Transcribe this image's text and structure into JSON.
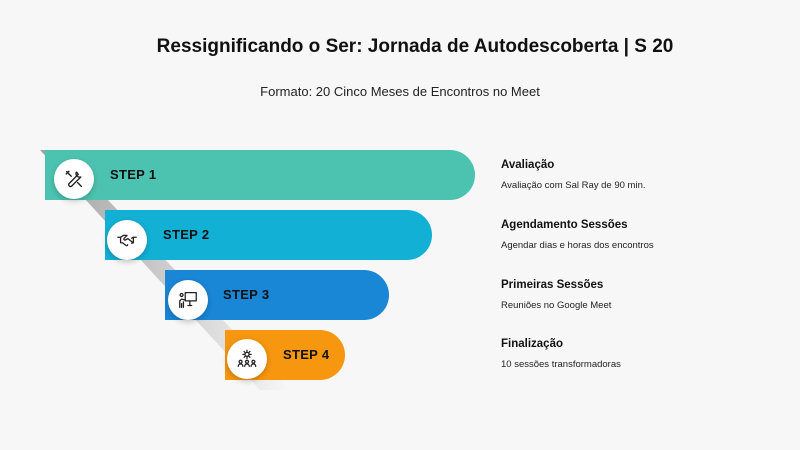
{
  "header": {
    "title": "Ressignificando o Ser: Jornada de Autodescoberta | S 20",
    "subtitle": "Formato: 20 Cinco Meses de Encontros no Meet"
  },
  "colors": {
    "step1": "#4cc3b0",
    "step2": "#12b0d4",
    "step3": "#1a86d6",
    "step4": "#f7960f"
  },
  "steps": [
    {
      "label": "STEP 1",
      "icon": "tools-icon",
      "title": "Avaliação",
      "desc": "Avaliação com Sal Ray de 90 min."
    },
    {
      "label": "STEP 2",
      "icon": "handshake-icon",
      "title": "Agendamento Sessões",
      "desc": "Agendar dias e horas dos encontros"
    },
    {
      "label": "STEP 3",
      "icon": "presentation-icon",
      "title": "Primeiras Sessões",
      "desc": "Reuniões no Google Meet"
    },
    {
      "label": "STEP 4",
      "icon": "team-gear-icon",
      "title": "Finalização",
      "desc": "10 sessões transformadoras"
    }
  ]
}
